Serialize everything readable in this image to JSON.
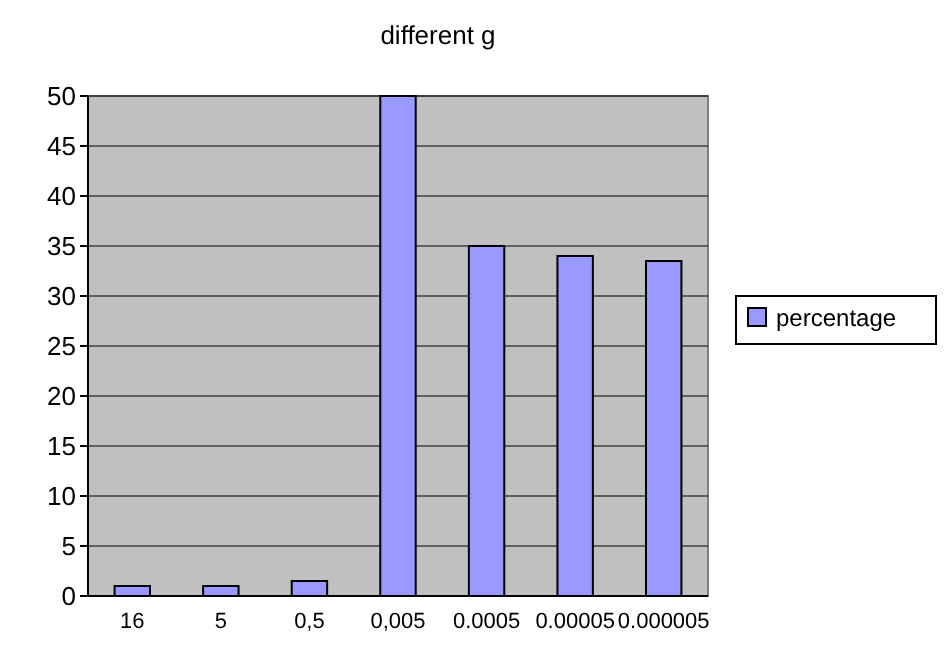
{
  "chart_data": {
    "type": "bar",
    "title": "different g",
    "categories": [
      "16",
      "5",
      "0,5",
      "0,005",
      "0.0005",
      "0.00005",
      "0.000005"
    ],
    "series": [
      {
        "name": "percentage",
        "color": "#9999ff",
        "values": [
          1,
          1,
          1.5,
          50,
          35,
          34,
          33.5
        ]
      }
    ],
    "ylim": [
      0,
      50
    ],
    "yticks": [
      0,
      5,
      10,
      15,
      20,
      25,
      30,
      35,
      40,
      45,
      50
    ],
    "grid": "y",
    "legend": "right"
  }
}
